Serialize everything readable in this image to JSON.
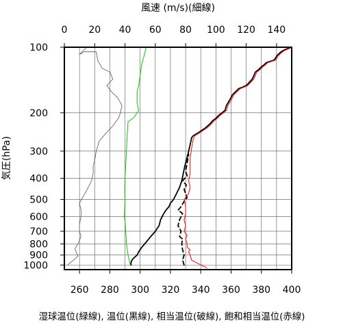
{
  "chart_data": {
    "type": "line",
    "title": "",
    "top_axis_label": "風速 (m/s)(細線)",
    "left_axis_label": "気圧(hPa)",
    "bottom_axis_label": "湿球温位(緑線), 温位(黒線), 相当温位(破線), 飽和相当温位(赤線)",
    "x_bottom": {
      "min": 250,
      "max": 400,
      "ticks": [
        260,
        280,
        300,
        320,
        340,
        360,
        380,
        400
      ]
    },
    "x_top": {
      "min": 0,
      "max": 150,
      "ticks": [
        0,
        20,
        40,
        60,
        80,
        100,
        120,
        140
      ]
    },
    "y": {
      "scale": "log",
      "min": 100,
      "max": 1050,
      "ticks": [
        100,
        200,
        300,
        400,
        500,
        600,
        700,
        800,
        900,
        1000
      ],
      "tick_labels": [
        "100",
        "200",
        "300",
        "400",
        "500",
        "600",
        "700",
        "800",
        "900",
        "1000"
      ]
    },
    "grid": true,
    "series": [
      {
        "name": "湿球温位",
        "axis": "bottom",
        "color": "#00cc00",
        "style": "solid",
        "points": [
          [
            293.5,
            1000
          ],
          [
            292.8,
            950
          ],
          [
            292,
            900
          ],
          [
            291.5,
            850
          ],
          [
            291,
            800
          ],
          [
            290.8,
            750
          ],
          [
            290.5,
            700
          ],
          [
            290.2,
            650
          ],
          [
            289.6,
            600
          ],
          [
            289.8,
            550
          ],
          [
            290,
            500
          ],
          [
            289.8,
            450
          ],
          [
            290,
            400
          ],
          [
            290.5,
            350
          ],
          [
            291,
            300
          ],
          [
            291.5,
            250
          ],
          [
            292,
            220
          ],
          [
            296,
            210
          ],
          [
            299,
            195
          ],
          [
            298,
            180
          ],
          [
            298,
            160
          ],
          [
            299,
            150
          ],
          [
            300,
            135
          ],
          [
            301,
            120
          ],
          [
            302.5,
            110
          ],
          [
            304,
            100
          ]
        ]
      },
      {
        "name": "温位",
        "axis": "bottom",
        "color": "#000000",
        "style": "solid",
        "points": [
          [
            294,
            1000
          ],
          [
            294,
            970
          ],
          [
            295,
            940
          ],
          [
            298,
            900
          ],
          [
            299,
            870
          ],
          [
            301,
            830
          ],
          [
            303,
            800
          ],
          [
            305,
            770
          ],
          [
            307,
            740
          ],
          [
            310,
            700
          ],
          [
            312.5,
            660
          ],
          [
            313.5,
            620
          ],
          [
            315,
            590
          ],
          [
            317,
            560
          ],
          [
            319,
            540
          ],
          [
            320,
            520
          ],
          [
            322,
            500
          ],
          [
            324,
            470
          ],
          [
            326,
            440
          ],
          [
            327.5,
            410
          ],
          [
            328.5,
            380
          ],
          [
            329.5,
            350
          ],
          [
            331,
            320
          ],
          [
            332,
            300
          ],
          [
            333,
            280
          ],
          [
            334,
            260
          ],
          [
            335,
            255
          ],
          [
            338,
            248
          ],
          [
            341,
            240
          ],
          [
            343,
            235
          ],
          [
            346,
            225
          ],
          [
            348,
            217
          ],
          [
            350,
            212
          ],
          [
            352,
            205
          ],
          [
            354,
            200
          ],
          [
            356,
            195
          ],
          [
            357,
            185
          ],
          [
            359,
            175
          ],
          [
            360,
            170
          ],
          [
            361,
            165
          ],
          [
            363,
            160
          ],
          [
            365,
            155
          ],
          [
            368,
            152
          ],
          [
            370,
            150
          ],
          [
            372,
            145
          ],
          [
            374,
            140
          ],
          [
            375,
            135
          ],
          [
            376,
            130
          ],
          [
            378,
            127
          ],
          [
            380,
            123
          ],
          [
            382,
            120
          ],
          [
            383,
            118
          ],
          [
            386,
            116
          ],
          [
            388,
            115
          ],
          [
            389,
            113
          ],
          [
            390,
            110
          ],
          [
            391,
            108
          ],
          [
            393,
            105
          ],
          [
            395,
            103
          ],
          [
            398,
            101
          ],
          [
            400,
            100
          ]
        ]
      },
      {
        "name": "相当温位",
        "axis": "bottom",
        "color": "#000000",
        "style": "dashed",
        "points": [
          [
            329,
            1000
          ],
          [
            328,
            950
          ],
          [
            329,
            900
          ],
          [
            328,
            850
          ],
          [
            327.5,
            800
          ],
          [
            328,
            760
          ],
          [
            326,
            740
          ],
          [
            327,
            700
          ],
          [
            325,
            660
          ],
          [
            326,
            620
          ],
          [
            328,
            580
          ],
          [
            325,
            560
          ],
          [
            327,
            540
          ],
          [
            329,
            510
          ],
          [
            331,
            490
          ],
          [
            330,
            470
          ],
          [
            329,
            450
          ],
          [
            330.5,
            430
          ],
          [
            328,
            410
          ],
          [
            331,
            390
          ],
          [
            330,
            370
          ],
          [
            331,
            340
          ],
          [
            332,
            310
          ]
        ]
      },
      {
        "name": "飽和相当温位",
        "axis": "bottom",
        "color": "#ff0000",
        "style": "solid",
        "points": [
          [
            344,
            1030
          ],
          [
            339,
            990
          ],
          [
            334,
            950
          ],
          [
            333,
            900
          ],
          [
            332,
            870
          ],
          [
            333,
            850
          ],
          [
            331,
            830
          ],
          [
            331,
            800
          ],
          [
            330,
            760
          ],
          [
            331,
            730
          ],
          [
            329,
            700
          ],
          [
            330,
            660
          ],
          [
            329,
            620
          ],
          [
            330,
            580
          ],
          [
            330,
            540
          ],
          [
            329,
            500
          ],
          [
            332,
            470
          ],
          [
            333,
            440
          ],
          [
            332,
            410
          ],
          [
            333,
            380
          ],
          [
            333,
            350
          ],
          [
            333,
            320
          ],
          [
            334,
            290
          ],
          [
            335,
            265
          ],
          [
            336,
            255
          ],
          [
            339,
            248
          ],
          [
            342,
            240
          ],
          [
            344,
            235
          ],
          [
            347,
            225
          ],
          [
            349,
            217
          ],
          [
            351,
            212
          ],
          [
            353,
            205
          ],
          [
            355,
            200
          ],
          [
            357,
            195
          ],
          [
            358,
            185
          ],
          [
            360,
            175
          ],
          [
            361,
            170
          ],
          [
            362,
            165
          ],
          [
            364,
            160
          ],
          [
            366,
            155
          ],
          [
            369,
            152
          ],
          [
            371,
            150
          ],
          [
            373,
            145
          ],
          [
            375,
            140
          ],
          [
            376,
            135
          ],
          [
            377,
            130
          ],
          [
            379,
            127
          ],
          [
            381,
            123
          ],
          [
            383,
            120
          ],
          [
            384,
            118
          ],
          [
            387,
            116
          ],
          [
            389,
            115
          ],
          [
            390,
            113
          ],
          [
            391,
            110
          ],
          [
            392,
            108
          ],
          [
            394,
            105
          ],
          [
            396,
            103
          ],
          [
            399,
            101
          ],
          [
            400,
            100
          ]
        ]
      },
      {
        "name": "風速",
        "axis": "top",
        "color": "#555555",
        "style": "thin",
        "points": [
          [
            2,
            1000
          ],
          [
            6,
            950
          ],
          [
            9,
            910
          ],
          [
            8,
            880
          ],
          [
            7,
            840
          ],
          [
            9,
            800
          ],
          [
            11,
            740
          ],
          [
            10,
            700
          ],
          [
            10,
            650
          ],
          [
            11,
            600
          ],
          [
            11,
            560
          ],
          [
            10,
            520
          ],
          [
            12,
            490
          ],
          [
            15,
            450
          ],
          [
            18,
            410
          ],
          [
            19,
            380
          ],
          [
            19,
            350
          ],
          [
            20,
            330
          ],
          [
            21,
            300
          ],
          [
            23,
            270
          ],
          [
            27,
            250
          ],
          [
            32,
            230
          ],
          [
            36,
            210
          ],
          [
            37,
            200
          ],
          [
            38,
            185
          ],
          [
            35,
            170
          ],
          [
            31,
            160
          ],
          [
            28,
            150
          ],
          [
            32,
            140
          ],
          [
            30,
            130
          ],
          [
            25,
            125
          ],
          [
            22,
            115
          ],
          [
            21,
            105
          ],
          [
            13,
            105
          ],
          [
            10,
            108
          ],
          [
            14,
            101
          ],
          [
            15,
            100
          ]
        ]
      }
    ]
  }
}
